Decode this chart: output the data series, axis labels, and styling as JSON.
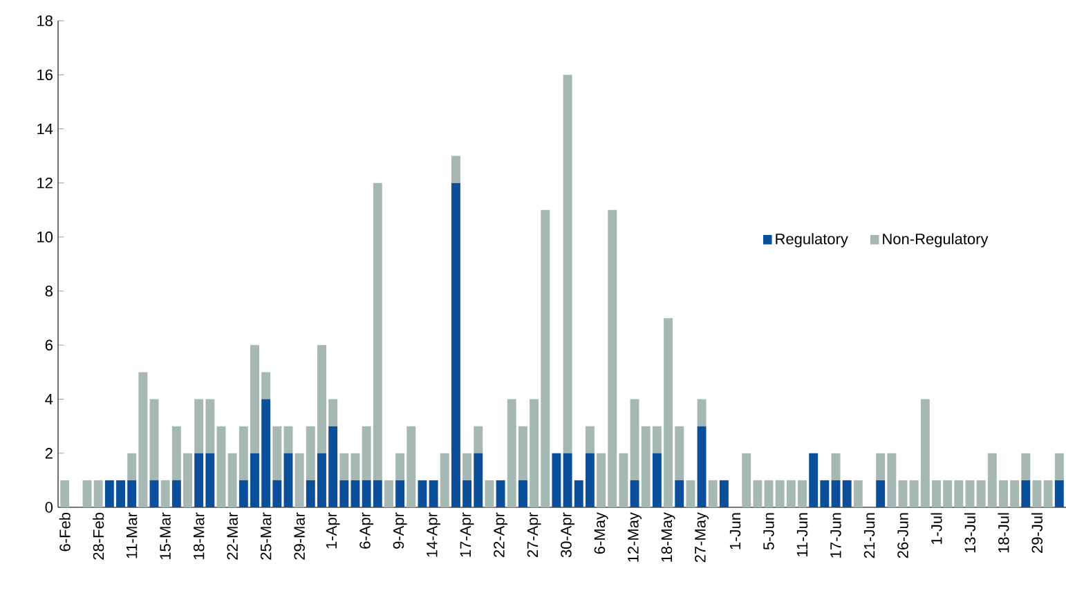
{
  "chart_data": {
    "type": "bar",
    "stacked": true,
    "categories": [
      "6-Feb",
      null,
      null,
      "28-Feb",
      null,
      null,
      "11-Mar",
      null,
      null,
      "15-Mar",
      null,
      null,
      "18-Mar",
      null,
      null,
      "22-Mar",
      null,
      null,
      "25-Mar",
      null,
      null,
      "29-Mar",
      null,
      null,
      "1-Apr",
      null,
      null,
      "6-Apr",
      null,
      null,
      "9-Apr",
      null,
      null,
      "14-Apr",
      null,
      null,
      "17-Apr",
      null,
      null,
      "22-Apr",
      null,
      null,
      "27-Apr",
      null,
      null,
      "30-Apr",
      null,
      null,
      "6-May",
      null,
      null,
      "12-May",
      null,
      null,
      "18-May",
      null,
      null,
      "27-May",
      null,
      null,
      "1-Jun",
      null,
      null,
      "5-Jun",
      null,
      null,
      "11-Jun",
      null,
      null,
      "17-Jun",
      null,
      null,
      "21-Jun",
      null,
      null,
      "26-Jun",
      null,
      null,
      "1-Jul",
      null,
      null,
      "13-Jul",
      null,
      null,
      "18-Jul",
      null,
      null,
      "29-Jul",
      null,
      null
    ],
    "series": [
      {
        "name": "Regulatory",
        "color": "#0b4f9a",
        "values": [
          0,
          0,
          0,
          0,
          1,
          1,
          1,
          0,
          1,
          0,
          1,
          0,
          2,
          2,
          0,
          0,
          1,
          2,
          4,
          1,
          2,
          0,
          1,
          2,
          3,
          1,
          1,
          1,
          1,
          0,
          1,
          0,
          1,
          1,
          0,
          12,
          1,
          2,
          0,
          1,
          0,
          1,
          0,
          0,
          2,
          2,
          1,
          2,
          0,
          0,
          0,
          1,
          0,
          2,
          0,
          1,
          0,
          3,
          0,
          1,
          0,
          0,
          0,
          0,
          0,
          0,
          0,
          2,
          1,
          1,
          1,
          0,
          0,
          1,
          0,
          0,
          0,
          0,
          0,
          0,
          0,
          0,
          0,
          0,
          0,
          0,
          1,
          0,
          0,
          1
        ]
      },
      {
        "name": "Non-Regulatory",
        "color": "#a6b8b4",
        "values": [
          1,
          0,
          1,
          1,
          0,
          0,
          1,
          5,
          3,
          1,
          2,
          2,
          2,
          2,
          3,
          2,
          2,
          4,
          1,
          2,
          1,
          2,
          2,
          4,
          1,
          1,
          1,
          2,
          11,
          1,
          1,
          3,
          0,
          0,
          2,
          1,
          1,
          1,
          1,
          0,
          4,
          2,
          4,
          11,
          0,
          14,
          0,
          1,
          2,
          11,
          2,
          3,
          3,
          1,
          7,
          2,
          1,
          1,
          1,
          0,
          0,
          2,
          1,
          1,
          1,
          1,
          1,
          0,
          0,
          1,
          0,
          1,
          0,
          1,
          2,
          1,
          1,
          4,
          1,
          1,
          1,
          1,
          1,
          2,
          1,
          1,
          1,
          1,
          1,
          1
        ]
      }
    ],
    "ylim": [
      0,
      18
    ],
    "yticks": [
      0,
      2,
      4,
      6,
      8,
      10,
      12,
      14,
      16,
      18
    ],
    "grid": false,
    "legend": "right"
  }
}
